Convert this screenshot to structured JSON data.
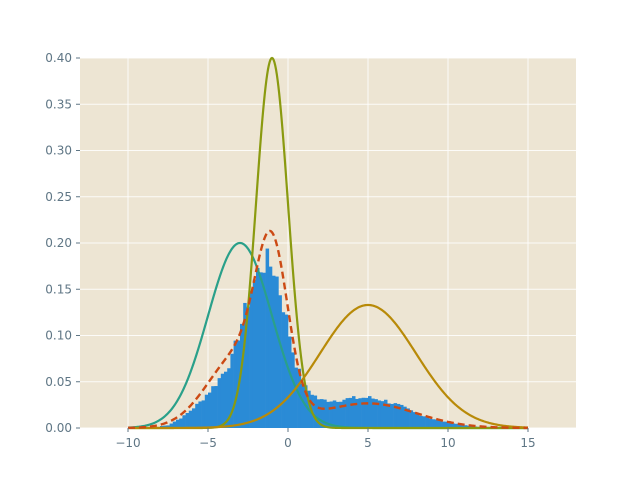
{
  "chart_data": {
    "type": "histogram-with-density-lines",
    "title": "",
    "xlabel": "",
    "ylabel": "",
    "xlim": [
      -13,
      18
    ],
    "ylim": [
      0,
      0.4
    ],
    "x_ticks": [
      -10,
      -5,
      0,
      5,
      10,
      15
    ],
    "y_ticks": [
      0.0,
      0.05,
      0.1,
      0.15,
      0.2,
      0.25,
      0.3,
      0.35,
      0.4
    ],
    "grid": true,
    "background": "#ede5d3",
    "histogram": {
      "color": "#2a8bd6",
      "description_points": [
        {
          "x": -7.5,
          "y": 0.003
        },
        {
          "x": -6.5,
          "y": 0.013
        },
        {
          "x": -5.5,
          "y": 0.028
        },
        {
          "x": -4.5,
          "y": 0.048
        },
        {
          "x": -3.5,
          "y": 0.075
        },
        {
          "x": -2.8,
          "y": 0.12
        },
        {
          "x": -2.3,
          "y": 0.15
        },
        {
          "x": -1.8,
          "y": 0.173
        },
        {
          "x": -1.3,
          "y": 0.18
        },
        {
          "x": -0.8,
          "y": 0.17
        },
        {
          "x": -0.4,
          "y": 0.14
        },
        {
          "x": 0.0,
          "y": 0.11
        },
        {
          "x": 0.4,
          "y": 0.075
        },
        {
          "x": 1.0,
          "y": 0.045
        },
        {
          "x": 2.0,
          "y": 0.03
        },
        {
          "x": 3.0,
          "y": 0.03
        },
        {
          "x": 4.0,
          "y": 0.032
        },
        {
          "x": 5.0,
          "y": 0.033
        },
        {
          "x": 6.0,
          "y": 0.03
        },
        {
          "x": 7.0,
          "y": 0.024
        },
        {
          "x": 8.0,
          "y": 0.016
        },
        {
          "x": 9.0,
          "y": 0.01
        },
        {
          "x": 10.0,
          "y": 0.006
        },
        {
          "x": 11.0,
          "y": 0.003
        },
        {
          "x": 12.0,
          "y": 0.001
        }
      ]
    },
    "curves": [
      {
        "style": "solid",
        "color": "#2aa08a",
        "kind": "gaussian",
        "mean": -3,
        "std": 2.0,
        "peak": 0.2
      },
      {
        "style": "solid",
        "color": "#8a9a10",
        "kind": "gaussian",
        "mean": -1,
        "std": 1.0,
        "peak": 0.4
      },
      {
        "style": "solid",
        "color": "#b88a08",
        "kind": "gaussian",
        "mean": 5,
        "std": 3.0,
        "peak": 0.133
      },
      {
        "style": "dashed",
        "color": "#cc4a14",
        "kind": "mixture",
        "components": [
          {
            "weight": 0.4,
            "mean": -3,
            "std": 2.0
          },
          {
            "weight": 0.4,
            "mean": -1,
            "std": 1.0
          },
          {
            "weight": 0.2,
            "mean": 5,
            "std": 3.0
          }
        ]
      }
    ]
  }
}
